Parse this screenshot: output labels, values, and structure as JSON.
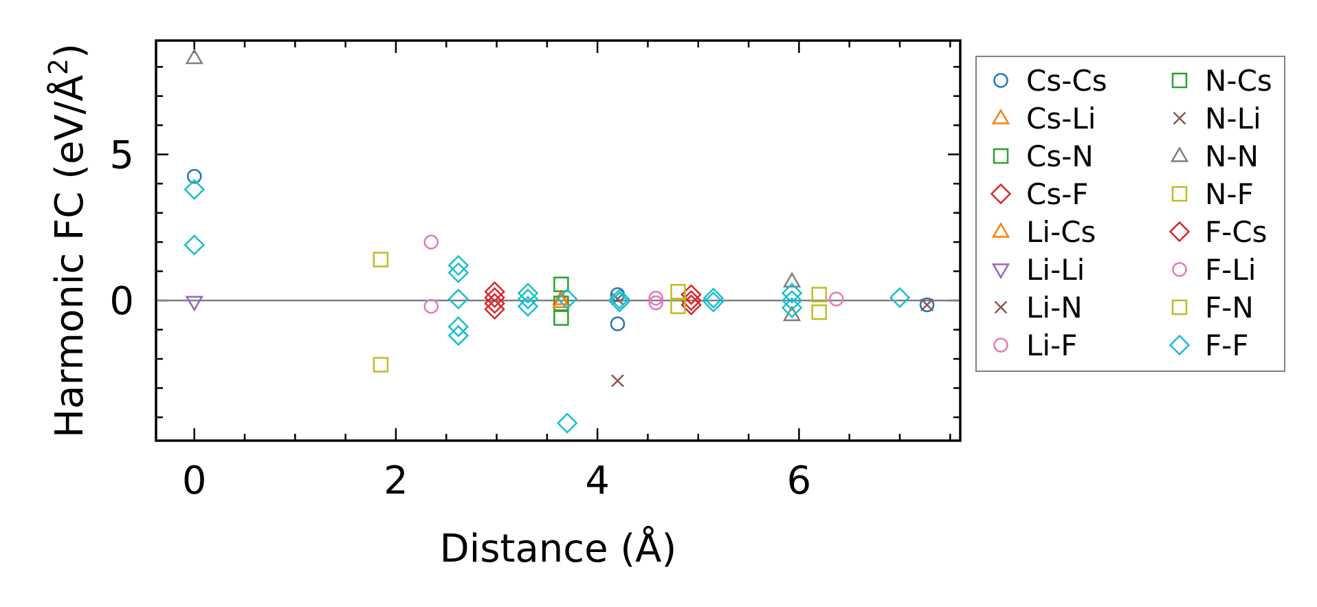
{
  "chart_data": {
    "type": "scatter",
    "title": "",
    "xlabel": "Distance (Å)",
    "ylabel_main": "Harmonic FC (eV/Å",
    "ylabel_sup": "2",
    "ylabel_end": ")",
    "xlim": [
      -0.38,
      7.6
    ],
    "ylim": [
      -4.8,
      8.9
    ],
    "xticks": [
      0,
      2,
      4,
      6
    ],
    "yticks": [
      0,
      5
    ],
    "x_minor_step": 0.5,
    "y_minor_step": 1,
    "zero_line": true,
    "legend_position": "outside-right",
    "series": [
      {
        "name": "Cs-Cs",
        "marker": "circle",
        "color": "#1f77b4",
        "points": [
          [
            0,
            4.25
          ],
          [
            4.2,
            0.2
          ],
          [
            4.2,
            -0.8
          ],
          [
            7.27,
            -0.15
          ]
        ]
      },
      {
        "name": "Cs-Li",
        "marker": "triangle-up",
        "color": "#ff7f0e",
        "points": [
          [
            3.64,
            0.05
          ]
        ]
      },
      {
        "name": "Cs-N",
        "marker": "square",
        "color": "#2ca02c",
        "points": [
          [
            3.64,
            0.55
          ],
          [
            3.64,
            -0.1
          ],
          [
            3.64,
            -0.6
          ]
        ]
      },
      {
        "name": "Cs-F",
        "marker": "diamond",
        "color": "#d62728",
        "points": [
          [
            2.98,
            0.3
          ],
          [
            2.98,
            0.1
          ],
          [
            2.98,
            -0.1
          ],
          [
            2.98,
            -0.3
          ],
          [
            4.93,
            0.2
          ],
          [
            4.93,
            0.0
          ],
          [
            4.93,
            -0.15
          ]
        ]
      },
      {
        "name": "Li-Cs",
        "marker": "triangle-up",
        "color": "#ff7f0e",
        "points": [
          [
            3.64,
            -0.05
          ]
        ]
      },
      {
        "name": "Li-Li",
        "marker": "triangle-down",
        "color": "#9467bd",
        "points": [
          [
            0,
            -0.05
          ]
        ]
      },
      {
        "name": "Li-N",
        "marker": "x",
        "color": "#8c564b",
        "points": [
          [
            4.2,
            -2.75
          ],
          [
            4.2,
            0.05
          ],
          [
            7.27,
            -0.15
          ]
        ]
      },
      {
        "name": "Li-F",
        "marker": "circle",
        "color": "#e377c2",
        "points": [
          [
            2.35,
            2.0
          ],
          [
            2.35,
            -0.2
          ],
          [
            4.58,
            0.08
          ],
          [
            4.58,
            -0.08
          ],
          [
            6.37,
            0.05
          ]
        ]
      },
      {
        "name": "N-Cs",
        "marker": "square",
        "color": "#2ca02c",
        "points": []
      },
      {
        "name": "N-Li",
        "marker": "x",
        "color": "#8c564b",
        "points": []
      },
      {
        "name": "N-N",
        "marker": "triangle-up",
        "color": "#7f7f7f",
        "points": [
          [
            0,
            8.3
          ],
          [
            5.93,
            0.65
          ],
          [
            5.93,
            -0.5
          ]
        ]
      },
      {
        "name": "N-F",
        "marker": "square",
        "color": "#bcbd22",
        "points": [
          [
            1.85,
            1.4
          ],
          [
            1.85,
            -2.2
          ],
          [
            4.8,
            0.3
          ],
          [
            4.8,
            -0.2
          ],
          [
            6.2,
            0.2
          ],
          [
            6.2,
            -0.4
          ]
        ]
      },
      {
        "name": "F-Cs",
        "marker": "diamond",
        "color": "#d62728",
        "points": []
      },
      {
        "name": "F-Li",
        "marker": "circle",
        "color": "#e377c2",
        "points": []
      },
      {
        "name": "F-N",
        "marker": "square",
        "color": "#bcbd22",
        "points": []
      },
      {
        "name": "F-F",
        "marker": "diamond",
        "color": "#17becf",
        "points": [
          [
            0,
            3.8
          ],
          [
            0,
            1.9
          ],
          [
            2.62,
            1.2
          ],
          [
            2.62,
            0.95
          ],
          [
            2.62,
            0.05
          ],
          [
            2.62,
            -0.9
          ],
          [
            2.62,
            -1.2
          ],
          [
            3.31,
            0.25
          ],
          [
            3.31,
            0.05
          ],
          [
            3.31,
            -0.2
          ],
          [
            3.7,
            0.05
          ],
          [
            3.7,
            -4.2
          ],
          [
            4.22,
            0.05
          ],
          [
            4.22,
            -0.05
          ],
          [
            5.15,
            0.08
          ],
          [
            5.15,
            -0.05
          ],
          [
            5.93,
            0.25
          ],
          [
            5.93,
            0.0
          ],
          [
            5.93,
            -0.25
          ],
          [
            7.0,
            0.1
          ]
        ]
      }
    ]
  }
}
